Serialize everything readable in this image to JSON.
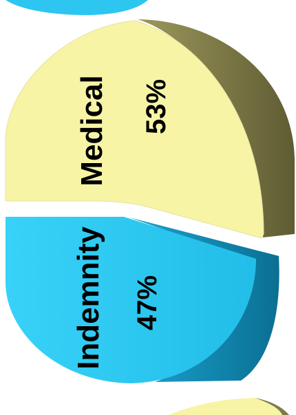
{
  "chart_data": {
    "type": "pie",
    "title": "",
    "categories": [
      "Medical",
      "Indemnity"
    ],
    "values": [
      53,
      47
    ],
    "data_labels": [
      "53%",
      "47%"
    ],
    "colors": {
      "Medical": "#f7f4a6",
      "Medical_side": "#7f7b4a",
      "Indemnity": "#2cc6f0",
      "Indemnity_side": "#0f86b0"
    },
    "style": "3d-exploded",
    "orientation": "rotated-90-ccw"
  }
}
